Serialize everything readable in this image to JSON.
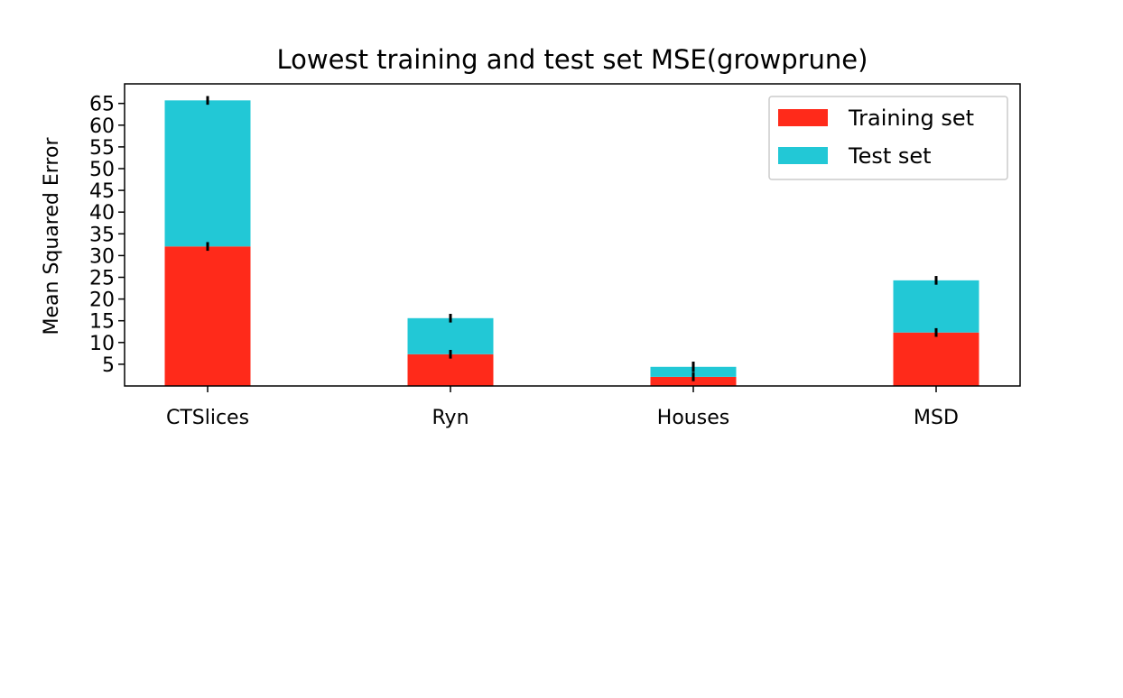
{
  "chart_data": {
    "type": "bar",
    "stacked": true,
    "title": "Lowest training and test set MSE(growprune)",
    "xlabel": "",
    "ylabel": "Mean Squared Error",
    "categories": [
      "CTSlices",
      "Ryn",
      "Houses",
      "MSD"
    ],
    "series": [
      {
        "name": "Training set",
        "color": "#ff2a1a",
        "values": [
          32.1,
          7.3,
          2.1,
          12.3
        ],
        "errors": [
          1.0,
          1.0,
          1.0,
          1.0
        ]
      },
      {
        "name": "Test set",
        "color": "#22c8d6",
        "values": [
          33.6,
          8.3,
          2.3,
          12.0
        ],
        "errors": [
          1.0,
          1.0,
          1.2,
          1.0
        ]
      }
    ],
    "yticks": [
      5,
      10,
      15,
      20,
      25,
      30,
      35,
      40,
      45,
      50,
      55,
      60,
      65
    ],
    "ylim": [
      0,
      69.5
    ],
    "grid": false,
    "legend_position": "top-right"
  }
}
